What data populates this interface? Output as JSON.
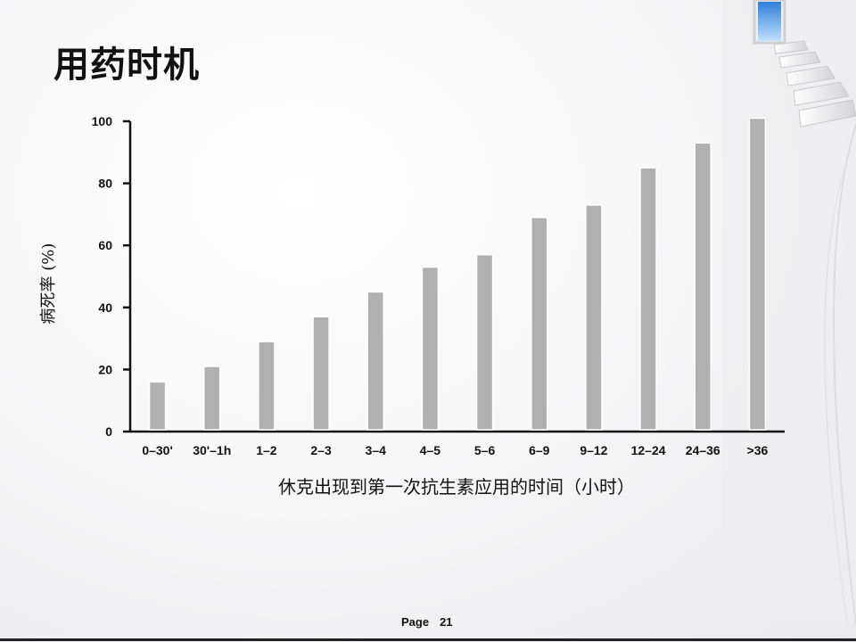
{
  "slide": {
    "title": "用药时机",
    "page_label": "Page",
    "page_number": "21"
  },
  "chart_data": {
    "type": "bar",
    "categories": [
      "0–30'",
      "30'–1h",
      "1–2",
      "2–3",
      "3–4",
      "4–5",
      "5–6",
      "6–9",
      "9–12",
      "12–24",
      "24–36",
      ">36"
    ],
    "values": [
      16,
      21,
      29,
      37,
      45,
      53,
      57,
      69,
      73,
      85,
      93,
      101
    ],
    "xlabel": "休克出现到第一次抗生素应用的时间（小时）",
    "ylabel": "病死率 (%)",
    "ylim": [
      0,
      100
    ],
    "yticks": [
      0,
      20,
      40,
      60,
      80,
      100
    ],
    "grid": false,
    "bar_color": "#b0b0b0",
    "bar_border_color": "#ffffff"
  }
}
